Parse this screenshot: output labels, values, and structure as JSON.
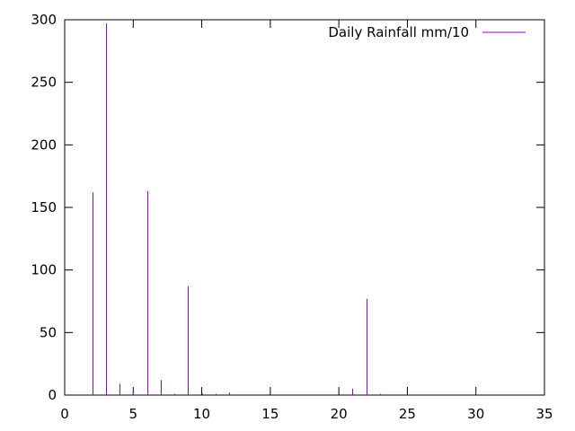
{
  "chart_data": {
    "type": "bar",
    "series": [
      {
        "name": "Daily Rainfall mm/10",
        "color": "#9400d3",
        "x": [
          2,
          3,
          4,
          5,
          6,
          7,
          8,
          9,
          10,
          11,
          12,
          21,
          22,
          23
        ],
        "values": [
          162,
          297,
          9,
          4,
          163,
          12,
          1,
          87,
          1,
          1,
          2,
          5,
          77,
          1
        ]
      }
    ],
    "xlim": [
      0,
      35
    ],
    "ylim": [
      0,
      300
    ],
    "xticks": [
      0,
      5,
      10,
      15,
      20,
      25,
      30,
      35
    ],
    "yticks": [
      0,
      50,
      100,
      150,
      200,
      250,
      300
    ],
    "grid": false,
    "legend_position": "top-right"
  }
}
